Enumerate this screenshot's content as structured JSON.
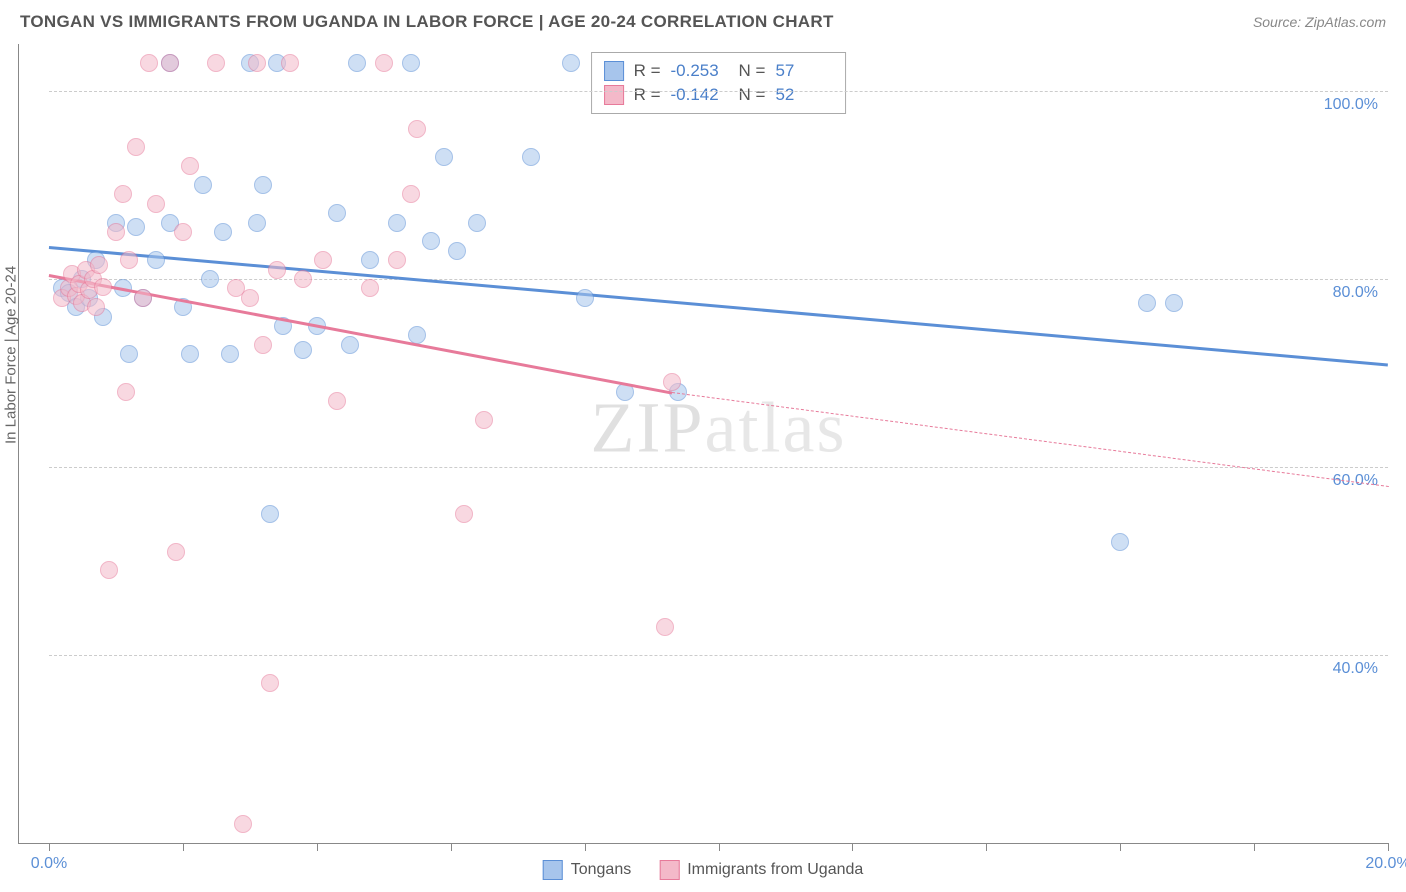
{
  "title": "TONGAN VS IMMIGRANTS FROM UGANDA IN LABOR FORCE | AGE 20-24 CORRELATION CHART",
  "source": "Source: ZipAtlas.com",
  "y_axis_label": "In Labor Force | Age 20-24",
  "watermark": "ZIPatlas",
  "chart": {
    "type": "scatter",
    "xlim": [
      0,
      20
    ],
    "ylim": [
      20,
      105
    ],
    "x_ticks": [
      0,
      2,
      4,
      6,
      8,
      10,
      12,
      14,
      16,
      18,
      20
    ],
    "x_tick_labels": {
      "0": "0.0%",
      "20": "20.0%"
    },
    "y_gridlines": [
      40,
      60,
      80,
      100
    ],
    "y_tick_labels": {
      "40": "40.0%",
      "60": "60.0%",
      "80": "80.0%",
      "100": "100.0%"
    },
    "background_color": "#ffffff",
    "grid_color": "#cccccc",
    "marker_radius": 9,
    "marker_opacity": 0.55
  },
  "series": [
    {
      "name": "Tongans",
      "color_fill": "#a7c5ec",
      "color_stroke": "#5b8fd6",
      "R": "-0.253",
      "N": "57",
      "regression": {
        "x1": 0,
        "y1": 83.5,
        "x2_solid": 20,
        "y2_solid": 71,
        "x2_dashed": 20,
        "y2_dashed": 71,
        "dash_from_x": 20
      },
      "points": [
        [
          0.2,
          79
        ],
        [
          0.3,
          78.5
        ],
        [
          0.4,
          77
        ],
        [
          0.5,
          80
        ],
        [
          0.6,
          78
        ],
        [
          0.7,
          82
        ],
        [
          0.8,
          76
        ],
        [
          1.0,
          86
        ],
        [
          1.1,
          79
        ],
        [
          1.2,
          72
        ],
        [
          1.3,
          85.5
        ],
        [
          1.4,
          78
        ],
        [
          1.6,
          82
        ],
        [
          1.8,
          86
        ],
        [
          1.8,
          103
        ],
        [
          2.0,
          77
        ],
        [
          2.1,
          72
        ],
        [
          2.3,
          90
        ],
        [
          2.4,
          80
        ],
        [
          2.6,
          85
        ],
        [
          2.7,
          72
        ],
        [
          3.0,
          103
        ],
        [
          3.1,
          86
        ],
        [
          3.2,
          90
        ],
        [
          3.3,
          55
        ],
        [
          3.4,
          103
        ],
        [
          3.5,
          75
        ],
        [
          3.8,
          72.5
        ],
        [
          4.0,
          75
        ],
        [
          4.3,
          87
        ],
        [
          4.5,
          73
        ],
        [
          4.6,
          103
        ],
        [
          4.8,
          82
        ],
        [
          5.2,
          86
        ],
        [
          5.4,
          103
        ],
        [
          5.5,
          74
        ],
        [
          5.7,
          84
        ],
        [
          5.9,
          93
        ],
        [
          6.1,
          83
        ],
        [
          6.4,
          86
        ],
        [
          7.2,
          93
        ],
        [
          7.8,
          103
        ],
        [
          8.0,
          78
        ],
        [
          8.6,
          68
        ],
        [
          9.4,
          68
        ],
        [
          16.0,
          52
        ],
        [
          16.4,
          77.5
        ],
        [
          16.8,
          77.5
        ]
      ]
    },
    {
      "name": "Immigrants from Uganda",
      "color_fill": "#f4b9c9",
      "color_stroke": "#e77a9a",
      "R": "-0.142",
      "N": "52",
      "regression": {
        "x1": 0,
        "y1": 80.5,
        "x2_solid": 9.3,
        "y2_solid": 68,
        "x2_dashed": 20,
        "y2_dashed": 58,
        "dash_from_x": 9.3
      },
      "points": [
        [
          0.2,
          78
        ],
        [
          0.3,
          79
        ],
        [
          0.35,
          80.5
        ],
        [
          0.4,
          78.2
        ],
        [
          0.45,
          79.5
        ],
        [
          0.5,
          77.5
        ],
        [
          0.55,
          81
        ],
        [
          0.6,
          78.8
        ],
        [
          0.65,
          80
        ],
        [
          0.7,
          77
        ],
        [
          0.75,
          81.5
        ],
        [
          0.8,
          79.2
        ],
        [
          0.9,
          49
        ],
        [
          1.0,
          85
        ],
        [
          1.1,
          89
        ],
        [
          1.15,
          68
        ],
        [
          1.2,
          82
        ],
        [
          1.3,
          94
        ],
        [
          1.4,
          78
        ],
        [
          1.5,
          103
        ],
        [
          1.6,
          88
        ],
        [
          1.8,
          103
        ],
        [
          1.9,
          51
        ],
        [
          2.0,
          85
        ],
        [
          2.1,
          92
        ],
        [
          2.5,
          103
        ],
        [
          2.8,
          79
        ],
        [
          2.9,
          22
        ],
        [
          3.0,
          78
        ],
        [
          3.1,
          103
        ],
        [
          3.2,
          73
        ],
        [
          3.3,
          37
        ],
        [
          3.4,
          81
        ],
        [
          3.6,
          103
        ],
        [
          3.8,
          80
        ],
        [
          4.1,
          82
        ],
        [
          4.3,
          67
        ],
        [
          4.8,
          79
        ],
        [
          5.0,
          103
        ],
        [
          5.2,
          82
        ],
        [
          5.4,
          89
        ],
        [
          5.5,
          96
        ],
        [
          6.2,
          55
        ],
        [
          6.5,
          65
        ],
        [
          9.2,
          43
        ],
        [
          9.3,
          69
        ]
      ]
    }
  ],
  "stats_box": {
    "R_label": "R =",
    "N_label": "N ="
  },
  "legend": {
    "item1": "Tongans",
    "item2": "Immigrants from Uganda"
  }
}
